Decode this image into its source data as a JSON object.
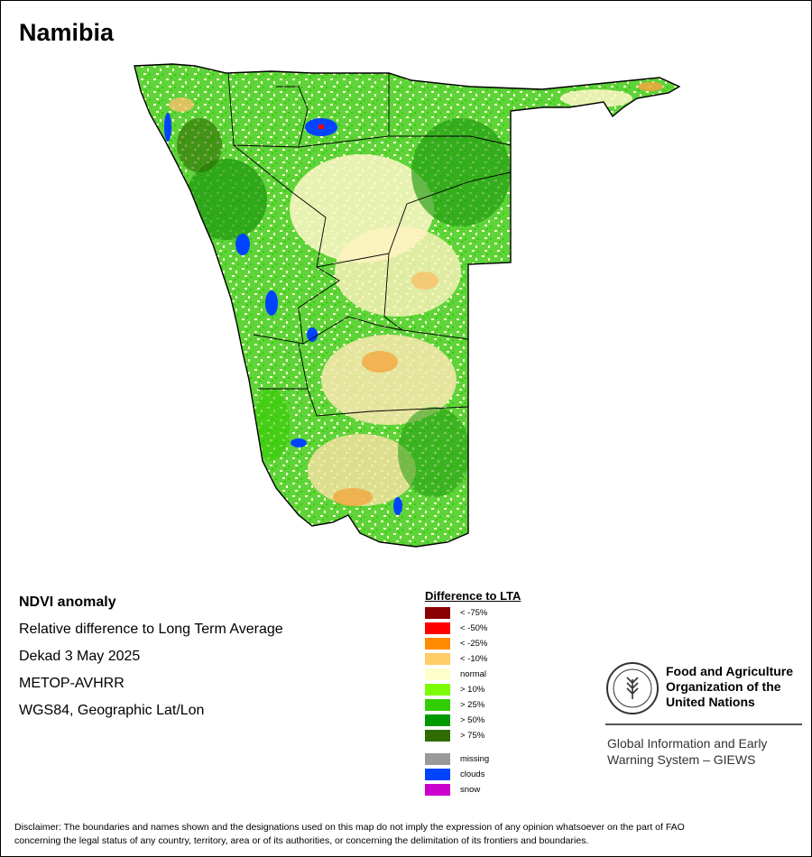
{
  "title": "Namibia",
  "info": {
    "product": "NDVI anomaly",
    "description": "Relative difference to Long Term Average",
    "period": "Dekad 3 May 2025",
    "sensor": "METOP-AVHRR",
    "projection": "WGS84, Geographic Lat/Lon"
  },
  "legend": {
    "title": "Difference to LTA",
    "items": [
      {
        "label": "< -75%",
        "color": "#8b0000"
      },
      {
        "label": "< -50%",
        "color": "#ff0000"
      },
      {
        "label": "< -25%",
        "color": "#ff8c00"
      },
      {
        "label": "< -10%",
        "color": "#ffcc66"
      },
      {
        "label": "normal",
        "color": "#ffffcc"
      },
      {
        "label": "> 10%",
        "color": "#7cfc00"
      },
      {
        "label": "> 25%",
        "color": "#33cc00"
      },
      {
        "label": "> 50%",
        "color": "#009900"
      },
      {
        "label": "> 75%",
        "color": "#2e6b00"
      }
    ],
    "extra": [
      {
        "label": "missing",
        "color": "#999999"
      },
      {
        "label": "clouds",
        "color": "#0044ff"
      },
      {
        "label": "snow",
        "color": "#cc00cc"
      }
    ]
  },
  "fao": {
    "logo_text": "FAO",
    "logo_motto": "FIAT PANIS",
    "name_line1": "Food and Agriculture",
    "name_line2": "Organization of the",
    "name_line3": "United Nations",
    "giews_line1": "Global Information and Early",
    "giews_line2": "Warning System – GIEWS"
  },
  "disclaimer_line1": "Disclaimer: The boundaries and names shown and the designations used on this map do not imply the expression of any opinion whatsoever on the part of FAO",
  "disclaimer_line2": "concerning the legal status of any country, territory, area or of its authorities, or concerning the delimitation of its frontiers and boundaries."
}
